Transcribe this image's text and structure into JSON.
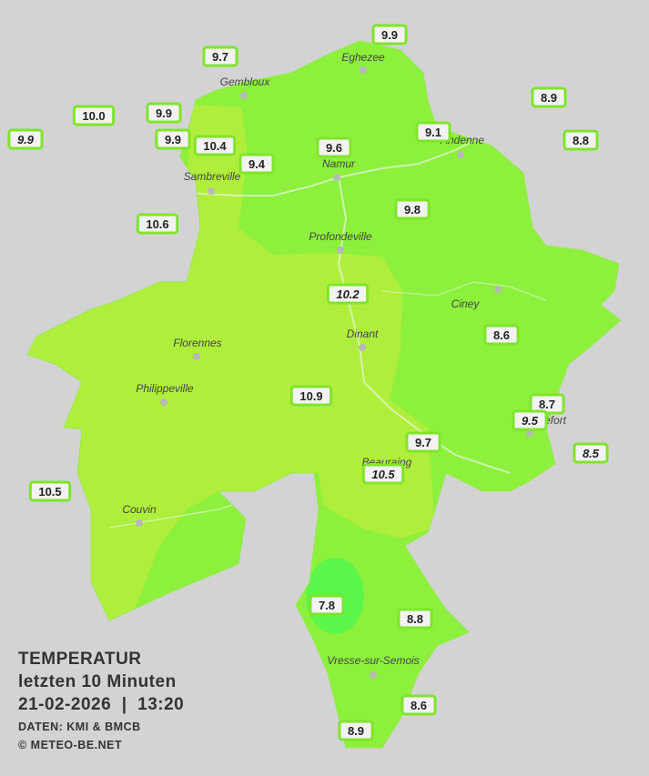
{
  "legend": {
    "title": "TEMPERATUR",
    "subtitle": "letzten 10 Minuten",
    "datetime": "21-02-2026  |  13:20",
    "source": "DATEN: KMI & BMCB",
    "copyright": "© METEO-BE.NET"
  },
  "cities": [
    "Eghezee",
    "Gembloux",
    "Andenne",
    "Namur",
    "Sambreville",
    "Profondeville",
    "Ciney",
    "Dinant",
    "Florennes",
    "Philippeville",
    "Beauraing",
    "Rochefort",
    "Couvin",
    "Vresse-sur-Semois"
  ],
  "stations": [
    {
      "value": "9.9",
      "italic": false
    },
    {
      "value": "9.7",
      "italic": false
    },
    {
      "value": "8.9",
      "italic": false
    },
    {
      "value": "10.0",
      "italic": false
    },
    {
      "value": "9.9",
      "italic": false
    },
    {
      "value": "9.9",
      "italic": true
    },
    {
      "value": "9.9",
      "italic": false
    },
    {
      "value": "10.4",
      "italic": false
    },
    {
      "value": "9.6",
      "italic": false
    },
    {
      "value": "9.1",
      "italic": false
    },
    {
      "value": "8.8",
      "italic": false
    },
    {
      "value": "9.4",
      "italic": false
    },
    {
      "value": "10.6",
      "italic": false
    },
    {
      "value": "9.8",
      "italic": false
    },
    {
      "value": "10.2",
      "italic": true
    },
    {
      "value": "8.6",
      "italic": false
    },
    {
      "value": "10.9",
      "italic": false
    },
    {
      "value": "8.7",
      "italic": false
    },
    {
      "value": "9.5",
      "italic": true
    },
    {
      "value": "9.7",
      "italic": false
    },
    {
      "value": "8.5",
      "italic": true
    },
    {
      "value": "10.5",
      "italic": true
    },
    {
      "value": "10.5",
      "italic": false
    },
    {
      "value": "7.8",
      "italic": false
    },
    {
      "value": "8.8",
      "italic": false
    },
    {
      "value": "8.6",
      "italic": false
    },
    {
      "value": "8.9",
      "italic": false
    }
  ]
}
